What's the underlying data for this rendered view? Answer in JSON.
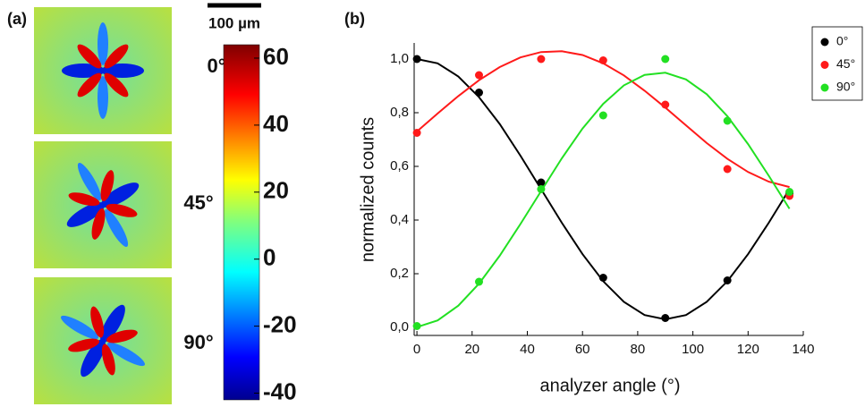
{
  "panel_a": {
    "label": "(a)",
    "scale_bar": "100 µm",
    "image_labels": [
      "0°",
      "45°",
      "90°"
    ],
    "colorbar": {
      "lim": [
        -42,
        64
      ],
      "ticks": [
        60,
        40,
        20,
        0,
        -20,
        -40
      ]
    }
  },
  "chart_data": {
    "type": "scatter",
    "panel_label": "(b)",
    "x_label": "analyzer angle (°)",
    "y_label": "normalized counts",
    "x": [
      0,
      22.5,
      45,
      67.5,
      90,
      112.5,
      135
    ],
    "fit_x": [
      0,
      7.5,
      15,
      22.5,
      30,
      37.5,
      45,
      52.5,
      60,
      67.5,
      75,
      82.5,
      90,
      97.5,
      105,
      112.5,
      120,
      127.5,
      135
    ],
    "series": [
      {
        "name": "0°",
        "color": "#000000",
        "values": [
          1.0,
          0.875,
          0.54,
          0.185,
          0.035,
          0.175,
          0.5
        ],
        "fit": [
          1.0,
          0.984,
          0.935,
          0.858,
          0.758,
          0.64,
          0.515,
          0.39,
          0.273,
          0.172,
          0.095,
          0.046,
          0.03,
          0.046,
          0.095,
          0.172,
          0.273,
          0.39,
          0.515
        ]
      },
      {
        "name": "45°",
        "color": "#ff1a1a",
        "values": [
          0.725,
          0.94,
          1.0,
          0.995,
          0.83,
          0.59,
          0.49
        ],
        "fit": [
          0.73,
          0.797,
          0.862,
          0.921,
          0.97,
          1.006,
          1.026,
          1.029,
          1.015,
          0.984,
          0.939,
          0.882,
          0.819,
          0.753,
          0.687,
          0.628,
          0.579,
          0.543,
          0.523
        ]
      },
      {
        "name": "90°",
        "color": "#22e022",
        "values": [
          0.005,
          0.17,
          0.515,
          0.79,
          1.0,
          0.77,
          0.505
        ],
        "fit": [
          0.001,
          0.026,
          0.081,
          0.163,
          0.267,
          0.385,
          0.508,
          0.63,
          0.741,
          0.833,
          0.902,
          0.941,
          0.949,
          0.924,
          0.869,
          0.787,
          0.683,
          0.565,
          0.442
        ]
      }
    ],
    "xlim": [
      -1,
      140
    ],
    "xticks": [
      0,
      20,
      40,
      60,
      80,
      100,
      120,
      140
    ],
    "ylim": [
      -0.03,
      1.06
    ],
    "yticks": [
      {
        "value": 0,
        "label": "0,0"
      },
      {
        "value": 0.2,
        "label": "0,2"
      },
      {
        "value": 0.4,
        "label": "0,4"
      },
      {
        "value": 0.6,
        "label": "0,6"
      },
      {
        "value": 0.8,
        "label": "0,8"
      },
      {
        "value": 1.0,
        "label": "1,0"
      }
    ],
    "legend": "top-right"
  }
}
